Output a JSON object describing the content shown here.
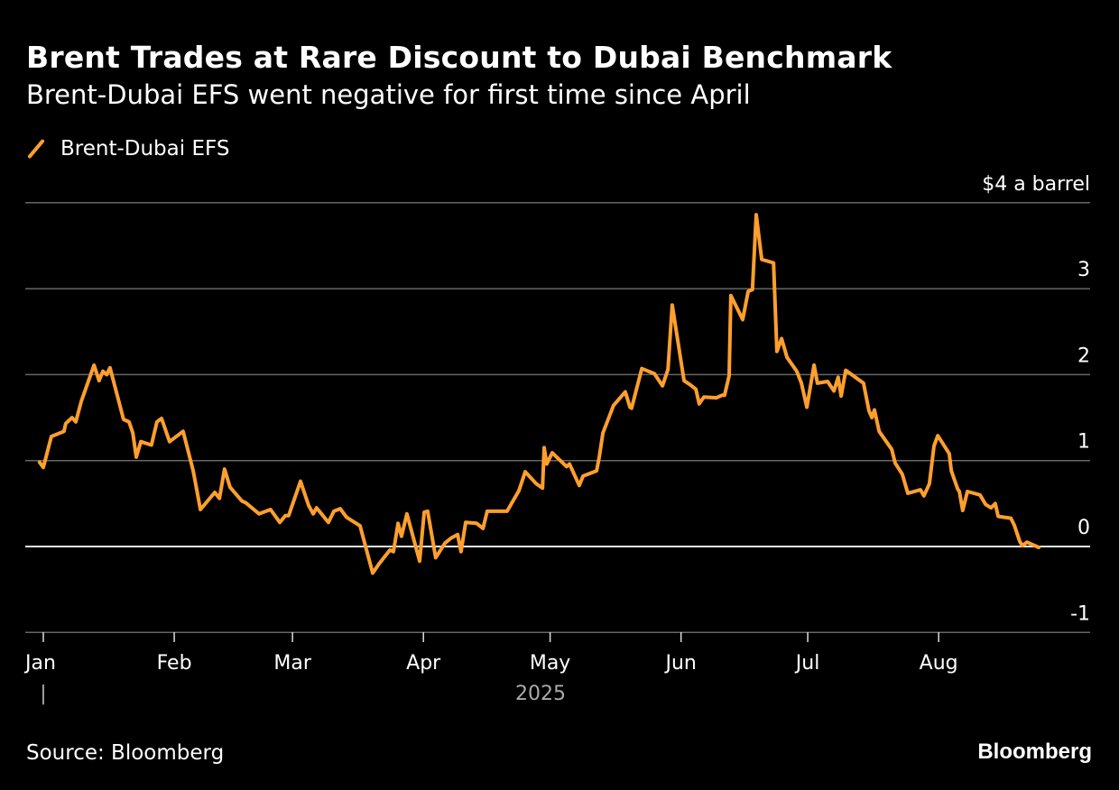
{
  "title": "Brent Trades at Rare Discount to Dubai Benchmark",
  "subtitle": "Brent-Dubai EFS went negative for first time since April",
  "source": "Source: Bloomberg",
  "brand": "Bloomberg",
  "chart_data": {
    "type": "line",
    "title": "Brent Trades at Rare Discount to Dubai Benchmark",
    "ylabel": "$4 a barrel",
    "ylim": [
      -1,
      4
    ],
    "yticks": [
      {
        "v": 4,
        "label": "$4 a barrel"
      },
      {
        "v": 3,
        "label": "3"
      },
      {
        "v": 2,
        "label": "2"
      },
      {
        "v": 1,
        "label": "1"
      },
      {
        "v": 0,
        "label": "0"
      },
      {
        "v": -1,
        "label": "-1"
      }
    ],
    "xlabel": "2025",
    "x_unit": "days since Jan 1, 2025",
    "xlim": [
      -1,
      248
    ],
    "xticks": [
      {
        "d": 0,
        "label": "Jan"
      },
      {
        "d": 31,
        "label": "Feb"
      },
      {
        "d": 59,
        "label": "Mar"
      },
      {
        "d": 90,
        "label": "Apr"
      },
      {
        "d": 120,
        "label": "May"
      },
      {
        "d": 151,
        "label": "Jun"
      },
      {
        "d": 181,
        "label": "Jul"
      },
      {
        "d": 212,
        "label": "Aug"
      }
    ],
    "year_marker": "|",
    "grid": true,
    "legend_position": "top-left",
    "series": [
      {
        "name": "Brent-Dubai EFS",
        "color": "#ff9f2e",
        "x": [
          -0.9,
          0,
          1.9,
          4.9,
          5.3,
          6.8,
          7.7,
          9.0,
          12.0,
          13.2,
          14.1,
          15.0,
          15.8,
          19.0,
          20.3,
          21.2,
          22.0,
          23.1,
          25.6,
          26.9,
          28.0,
          29.9,
          33.1,
          35.5,
          37.2,
          40.6,
          41.7,
          42.9,
          44.2,
          47.0,
          47.9,
          51.1,
          53.8,
          56.0,
          57.3,
          58.1,
          60.9,
          62.8,
          63.9,
          64.7,
          67.5,
          68.8,
          70.3,
          71.8,
          75.0,
          78.0,
          79.5,
          82.1,
          82.9,
          84.0,
          84.8,
          86.1,
          89.1,
          90.2,
          91.0,
          92.9,
          95.1,
          96.6,
          98.1,
          98.9,
          100.0,
          102.6,
          104.1,
          105.1,
          109.8,
          112.6,
          114.1,
          116.7,
          118.2,
          118.6,
          119.2,
          120.5,
          123.9,
          124.6,
          126.9,
          127.8,
          131.0,
          131.6,
          132.5,
          135.0,
          137.8,
          138.9,
          139.3,
          141.7,
          144.7,
          146.6,
          147.9,
          148.9,
          151.7,
          153.2,
          154.5,
          155.3,
          156.4,
          159.4,
          160.7,
          161.3,
          162.4,
          162.8,
          165.6,
          166.9,
          167.9,
          168.8,
          170.1,
          172.9,
          173.7,
          174.8,
          176.1,
          178.4,
          179.5,
          180.8,
          182.5,
          183.3,
          185.7,
          187.2,
          188.2,
          188.9,
          190.0,
          194.2,
          195.5,
          196.2,
          196.8,
          197.9,
          200.9,
          201.7,
          203.4,
          204.7,
          207.7,
          208.5,
          209.8,
          210.9,
          211.8,
          214.5,
          215.0,
          216.5,
          216.9,
          217.7,
          218.8,
          221.8,
          223.1,
          224.4,
          225.4,
          226.1,
          229.1,
          229.9,
          231.2,
          231.8,
          232.9,
          235.7
        ],
        "y": [
          0.98,
          0.92,
          1.28,
          1.34,
          1.43,
          1.5,
          1.45,
          1.69,
          2.11,
          1.93,
          2.04,
          2.0,
          2.08,
          1.48,
          1.45,
          1.32,
          1.04,
          1.22,
          1.18,
          1.45,
          1.49,
          1.22,
          1.34,
          0.88,
          0.43,
          0.63,
          0.56,
          0.9,
          0.69,
          0.53,
          0.51,
          0.38,
          0.43,
          0.28,
          0.36,
          0.36,
          0.76,
          0.48,
          0.38,
          0.45,
          0.28,
          0.41,
          0.44,
          0.34,
          0.24,
          -0.31,
          -0.2,
          -0.04,
          -0.06,
          0.27,
          0.12,
          0.38,
          -0.17,
          0.4,
          0.41,
          -0.13,
          0.04,
          0.1,
          0.14,
          -0.06,
          0.28,
          0.27,
          0.21,
          0.41,
          0.41,
          0.65,
          0.87,
          0.73,
          0.68,
          1.15,
          0.96,
          1.09,
          0.93,
          0.96,
          0.71,
          0.82,
          0.88,
          1.03,
          1.32,
          1.64,
          1.8,
          1.62,
          1.61,
          2.07,
          2.01,
          1.87,
          2.06,
          2.81,
          1.93,
          1.88,
          1.83,
          1.66,
          1.74,
          1.73,
          1.76,
          1.76,
          1.99,
          2.92,
          2.64,
          2.97,
          2.99,
          3.86,
          3.34,
          3.3,
          2.27,
          2.42,
          2.2,
          2.04,
          1.9,
          1.62,
          2.11,
          1.9,
          1.92,
          1.81,
          1.97,
          1.75,
          2.05,
          1.9,
          1.58,
          1.5,
          1.59,
          1.34,
          1.13,
          0.97,
          0.84,
          0.62,
          0.66,
          0.59,
          0.73,
          1.17,
          1.29,
          1.08,
          0.88,
          0.67,
          0.64,
          0.42,
          0.64,
          0.6,
          0.49,
          0.45,
          0.5,
          0.35,
          0.33,
          0.25,
          0.06,
          0.01,
          0.05,
          -0.01
        ]
      }
    ]
  }
}
